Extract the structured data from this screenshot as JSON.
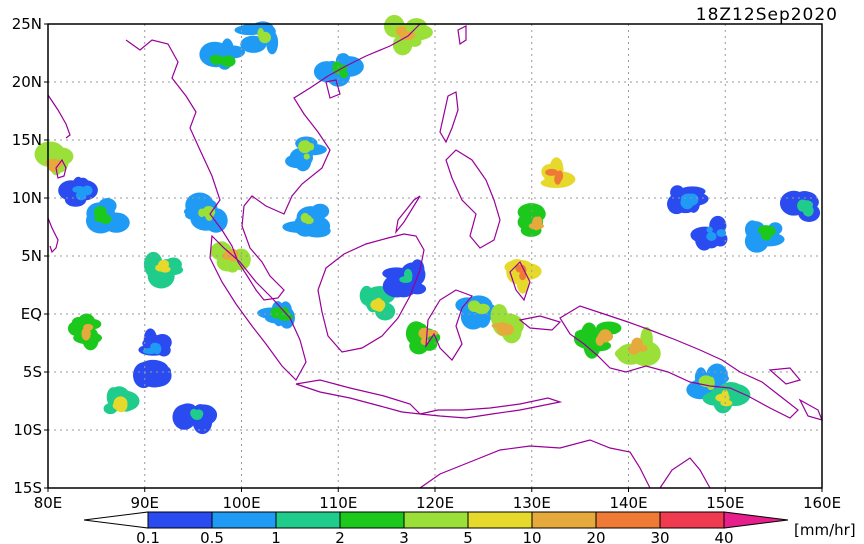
{
  "title_timestamp": "18Z12Sep2020",
  "map": {
    "lon_range": [
      80,
      160
    ],
    "lat_range": [
      -15,
      25
    ],
    "lat_labels": [
      "25N",
      "20N",
      "15N",
      "10N",
      "5N",
      "EQ",
      "5S",
      "10S",
      "15S"
    ],
    "lon_labels": [
      "80E",
      "90E",
      "100E",
      "110E",
      "120E",
      "130E",
      "140E",
      "150E",
      "160E"
    ],
    "coastline_color": "#990099",
    "grid": "dotted"
  },
  "colorbar": {
    "unit": "[mm/hr]",
    "tick_labels": [
      "0.1",
      "0.5",
      "1",
      "2",
      "3",
      "5",
      "10",
      "20",
      "30",
      "40"
    ],
    "colors": [
      "#ffffff",
      "#2a4bf0",
      "#1f9bf5",
      "#1fcc8c",
      "#1dc81d",
      "#9be038",
      "#e6d92c",
      "#e6aa3c",
      "#ee7a35",
      "#f03a4f",
      "#e61f8a"
    ]
  },
  "rain_areas": [
    {
      "lon": 81,
      "lat": 13,
      "value": 12
    },
    {
      "lon": 83.5,
      "lat": 10.5,
      "value": 0.6
    },
    {
      "lon": 86,
      "lat": 8.5,
      "value": 2
    },
    {
      "lon": 84,
      "lat": -1.5,
      "value": 10
    },
    {
      "lon": 87.5,
      "lat": -7.5,
      "value": 5
    },
    {
      "lon": 91,
      "lat": -5.5,
      "value": 0.4
    },
    {
      "lon": 91,
      "lat": -3,
      "value": 0.6
    },
    {
      "lon": 95,
      "lat": -8.5,
      "value": 1
    },
    {
      "lon": 92,
      "lat": 4,
      "value": 5
    },
    {
      "lon": 96.5,
      "lat": 8.5,
      "value": 3
    },
    {
      "lon": 99,
      "lat": 5,
      "value": 12
    },
    {
      "lon": 104,
      "lat": 0,
      "value": 2
    },
    {
      "lon": 107,
      "lat": 14,
      "value": 3
    },
    {
      "lon": 110,
      "lat": 21,
      "value": 2
    },
    {
      "lon": 107,
      "lat": 8,
      "value": 3
    },
    {
      "lon": 114,
      "lat": 1,
      "value": 5
    },
    {
      "lon": 117,
      "lat": 3,
      "value": 1
    },
    {
      "lon": 119,
      "lat": -2,
      "value": 10
    },
    {
      "lon": 124.5,
      "lat": 0.5,
      "value": 3
    },
    {
      "lon": 128.5,
      "lat": 3.5,
      "value": 20
    },
    {
      "lon": 130.5,
      "lat": 8,
      "value": 10
    },
    {
      "lon": 132.5,
      "lat": 12,
      "value": 25
    },
    {
      "lon": 127,
      "lat": -1,
      "value": 12
    },
    {
      "lon": 137,
      "lat": -2,
      "value": 10
    },
    {
      "lon": 141,
      "lat": -3,
      "value": 12
    },
    {
      "lon": 148,
      "lat": -6,
      "value": 3
    },
    {
      "lon": 150,
      "lat": -7.5,
      "value": 5
    },
    {
      "lon": 154,
      "lat": 7,
      "value": 2
    },
    {
      "lon": 158,
      "lat": 9,
      "value": 1
    },
    {
      "lon": 146,
      "lat": 10,
      "value": 0.6
    },
    {
      "lon": 149,
      "lat": 7,
      "value": 0.6
    },
    {
      "lon": 98,
      "lat": 22,
      "value": 2
    },
    {
      "lon": 102,
      "lat": 24,
      "value": 3
    },
    {
      "lon": 117,
      "lat": 24,
      "value": 12
    }
  ]
}
